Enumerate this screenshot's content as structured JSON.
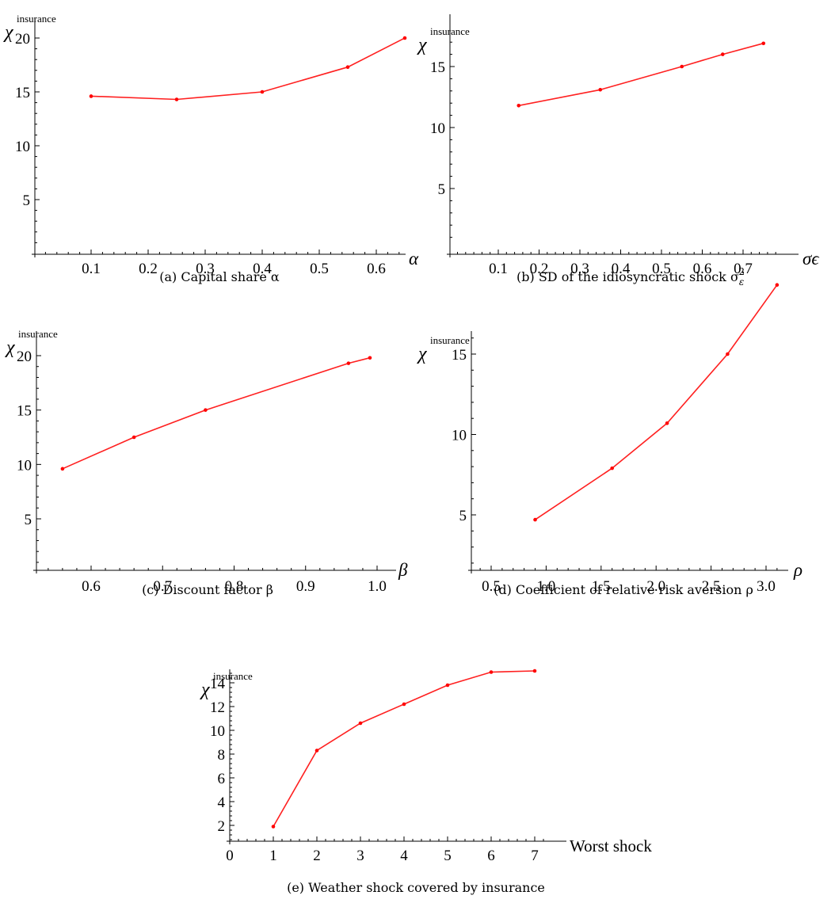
{
  "chart_data": [
    {
      "id": "a",
      "type": "line",
      "caption": "(a) Capital share α",
      "ylabel": "χ",
      "ylabel_sup": "insurance",
      "xlabel": "α",
      "xlabel_italic": true,
      "xlim": [
        0,
        0.68
      ],
      "ylim": [
        0,
        20.5
      ],
      "xticks": [
        "0.1",
        "0.2",
        "0.3",
        "0.4",
        "0.5",
        "0.6"
      ],
      "xtick_values": [
        0.1,
        0.2,
        0.3,
        0.4,
        0.5,
        0.6
      ],
      "yticks": [
        "5",
        "10",
        "15",
        "20"
      ],
      "ytick_values": [
        5,
        10,
        15,
        20
      ],
      "series": [
        {
          "x": [
            0.1,
            0.25,
            0.4,
            0.55,
            0.65
          ],
          "y": [
            14.6,
            14.3,
            15.0,
            17.3,
            20.0
          ]
        }
      ],
      "grid": false
    },
    {
      "id": "b",
      "type": "line",
      "caption": "(b) SD of the idiosyncratic shock σ",
      "caption_sub": "ε",
      "caption_sup": "2",
      "ylabel": "χ",
      "ylabel_sup": "insurance",
      "xlabel": "σϵ",
      "xlabel_italic": true,
      "xlim": [
        0,
        0.78
      ],
      "ylim": [
        0,
        17.3
      ],
      "xticks": [
        "0.1",
        "0.2",
        "0.3",
        "0.4",
        "0.5",
        "0.6",
        "0.7"
      ],
      "xtick_values": [
        0.1,
        0.2,
        0.3,
        0.4,
        0.5,
        0.6,
        0.7
      ],
      "yticks": [
        "5",
        "10",
        "15"
      ],
      "ytick_values": [
        5,
        10,
        15
      ],
      "series": [
        {
          "x": [
            0.15,
            0.35,
            0.55,
            0.65,
            0.75
          ],
          "y": [
            11.8,
            13.1,
            15.0,
            16.0,
            16.9
          ]
        }
      ],
      "grid": false
    },
    {
      "id": "c",
      "type": "line",
      "caption": "(c) Discount factor β",
      "ylabel": "χ",
      "ylabel_sup": "insurance",
      "xlabel": "β",
      "xlabel_italic": true,
      "xlim": [
        0.5,
        1.0
      ],
      "ylim": [
        0,
        20.4
      ],
      "xticks": [
        "0.6",
        "0.7",
        "0.8",
        "0.9",
        "1.0"
      ],
      "xtick_values": [
        0.6,
        0.7,
        0.8,
        0.9,
        1.0
      ],
      "yticks": [
        "5",
        "10",
        "15",
        "20"
      ],
      "ytick_values": [
        5,
        10,
        15,
        20
      ],
      "series": [
        {
          "x": [
            0.56,
            0.66,
            0.76,
            0.96,
            0.99
          ],
          "y": [
            9.6,
            12.5,
            15.0,
            19.3,
            19.8
          ]
        }
      ],
      "grid": false
    },
    {
      "id": "d",
      "type": "line",
      "caption": "(d) Coefficient of relative risk aversion ρ",
      "ylabel": "χ",
      "ylabel_sup": "insurance",
      "xlabel": "ρ",
      "xlabel_italic": true,
      "xlim": [
        0,
        3.2
      ],
      "ylim": [
        0,
        19.6
      ],
      "xticks": [
        "0.5",
        "1.0",
        "1.5",
        "2.0",
        "2.5",
        "3.0"
      ],
      "xtick_values": [
        0.5,
        1.0,
        1.5,
        2.0,
        2.5,
        3.0
      ],
      "yticks": [
        "5",
        "10",
        "15"
      ],
      "ytick_values": [
        5,
        10,
        15
      ],
      "series": [
        {
          "x": [
            0.9,
            1.6,
            2.1,
            2.65,
            3.1
          ],
          "y": [
            4.7,
            7.9,
            10.7,
            15.0,
            19.3
          ]
        }
      ],
      "grid": false
    },
    {
      "id": "e",
      "type": "line",
      "caption": "(e) Weather shock covered by insurance",
      "ylabel": "χ",
      "ylabel_sup": "insurance",
      "xlabel": "Worst shock",
      "xlabel_italic": false,
      "xlim": [
        0,
        7.3
      ],
      "ylim": [
        0,
        15.6
      ],
      "xticks": [
        "0",
        "1",
        "2",
        "3",
        "4",
        "5",
        "6",
        "7"
      ],
      "xtick_values": [
        0,
        1,
        2,
        3,
        4,
        5,
        6,
        7
      ],
      "yticks": [
        "2",
        "4",
        "6",
        "8",
        "10",
        "12",
        "14"
      ],
      "ytick_values": [
        2,
        4,
        6,
        8,
        10,
        12,
        14
      ],
      "series": [
        {
          "x": [
            1,
            2,
            3,
            4,
            5,
            6,
            7
          ],
          "y": [
            1.9,
            8.3,
            10.6,
            12.2,
            13.8,
            14.9,
            15.0
          ]
        }
      ],
      "grid": false
    }
  ],
  "colors": {
    "series": "#ff2020",
    "axis": "#000000"
  }
}
